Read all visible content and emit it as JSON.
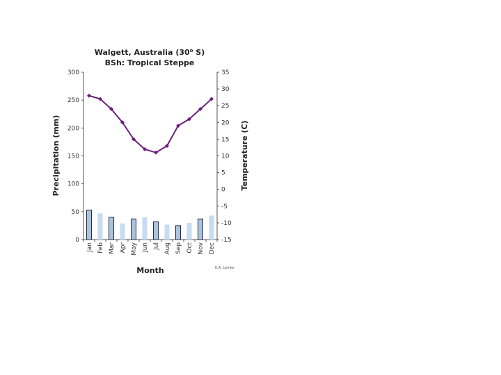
{
  "chart_data": {
    "type": "bar+line",
    "title_line1": "Walgett, Australia (30",
    "title_deg": "o",
    "title_line1_end": " S)",
    "title_line2": "BSh: Tropical Steppe",
    "xlabel": "Month",
    "ylabel_left": "Precipitation (mm)",
    "ylabel_right": "Temperature (C)",
    "categories": [
      "Jan",
      "Feb",
      "Mar",
      "Apr",
      "May",
      "Jun",
      "Jul",
      "Aug",
      "Sep",
      "Oct",
      "Nov",
      "Dec"
    ],
    "precipitation": [
      53,
      47,
      40,
      29,
      37,
      40,
      32,
      27,
      25,
      30,
      37,
      43
    ],
    "temperature": [
      28,
      27,
      24,
      20,
      15,
      12,
      11,
      13,
      19,
      21,
      24,
      27
    ],
    "ylim_left": [
      0,
      300
    ],
    "yticks_left": [
      0,
      50,
      100,
      150,
      200,
      250,
      300
    ],
    "ylim_right": [
      -15,
      35
    ],
    "yticks_right": [
      -15,
      -10,
      -5,
      0,
      5,
      10,
      15,
      20,
      25,
      30,
      35
    ],
    "credit": "K.A. Lemke",
    "colors": {
      "bar_dark": "#a9c4e0",
      "bar_light": "#c6dcf2",
      "bar_stroke": "#2b2b3a",
      "line": "#6b1f7a",
      "axis": "#555555"
    }
  }
}
